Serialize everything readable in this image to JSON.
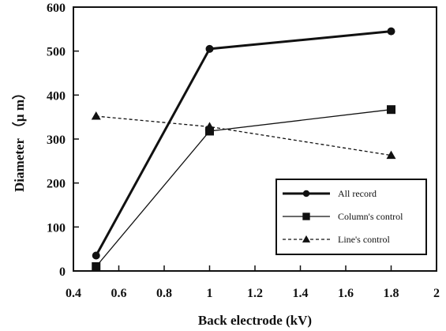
{
  "chart_data": {
    "type": "line",
    "xlabel": "Back electrode (kV)",
    "ylabel": "Diameter （μ m）",
    "xlim": [
      0.4,
      2
    ],
    "ylim": [
      0,
      600
    ],
    "x_ticks": [
      "0.4",
      "0.6",
      "0.8",
      "1",
      "1.2",
      "1.4",
      "1.6",
      "1.8",
      "2"
    ],
    "y_ticks": [
      "0",
      "100",
      "200",
      "300",
      "400",
      "500",
      "600"
    ],
    "grid": false,
    "legend_position": "bottom-right",
    "series": [
      {
        "name": "All record",
        "marker": "circle",
        "line_style": "solid-thick",
        "color": "#111111",
        "x": [
          0.5,
          1.0,
          1.8
        ],
        "values": [
          35,
          505,
          545
        ]
      },
      {
        "name": "Column's control",
        "marker": "square",
        "line_style": "solid",
        "color": "#111111",
        "x": [
          0.5,
          1.0,
          1.8
        ],
        "values": [
          10,
          318,
          367
        ]
      },
      {
        "name": "Line's control",
        "marker": "triangle",
        "line_style": "dashed",
        "color": "#111111",
        "x": [
          0.5,
          1.0,
          1.8
        ],
        "values": [
          352,
          328,
          263
        ]
      }
    ]
  }
}
